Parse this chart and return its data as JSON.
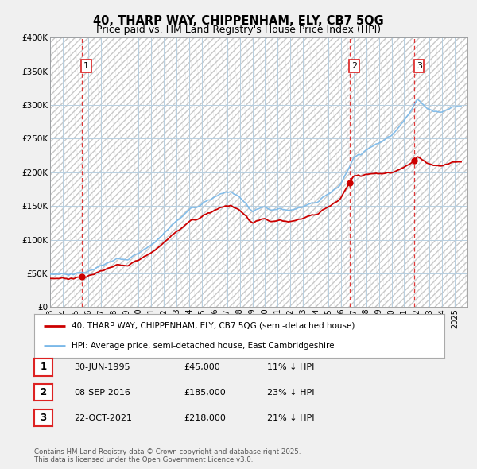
{
  "title": "40, THARP WAY, CHIPPENHAM, ELY, CB7 5QG",
  "subtitle": "Price paid vs. HM Land Registry's House Price Index (HPI)",
  "ylim": [
    0,
    400000
  ],
  "yticks": [
    0,
    50000,
    100000,
    150000,
    200000,
    250000,
    300000,
    350000,
    400000
  ],
  "ytick_labels": [
    "£0",
    "£50K",
    "£100K",
    "£150K",
    "£200K",
    "£250K",
    "£300K",
    "£350K",
    "£400K"
  ],
  "hpi_color": "#7ab8e8",
  "price_color": "#cc0000",
  "sale_dates": [
    1995.496,
    2016.686,
    2021.808
  ],
  "sale_prices": [
    45000,
    185000,
    218000
  ],
  "sale_labels": [
    "1",
    "2",
    "3"
  ],
  "sale_info": [
    {
      "label": "1",
      "date": "30-JUN-1995",
      "price": "£45,000",
      "pct": "11% ↓ HPI"
    },
    {
      "label": "2",
      "date": "08-SEP-2016",
      "price": "£185,000",
      "pct": "23% ↓ HPI"
    },
    {
      "label": "3",
      "date": "22-OCT-2021",
      "price": "£218,000",
      "pct": "21% ↓ HPI"
    }
  ],
  "legend_line1": "40, THARP WAY, CHIPPENHAM, ELY, CB7 5QG (semi-detached house)",
  "legend_line2": "HPI: Average price, semi-detached house, East Cambridgeshire",
  "footer": "Contains HM Land Registry data © Crown copyright and database right 2025.\nThis data is licensed under the Open Government Licence v3.0.",
  "bg_color": "#f0f0f0",
  "plot_bg_color": "#dce8f5",
  "hatch_color": "#c8c8c8",
  "grid_color": "#b8cfe0",
  "vline_color": "#dd2222",
  "title_fontsize": 10.5,
  "subtitle_fontsize": 9,
  "tick_fontsize": 7.5,
  "xstart": 1993,
  "xend": 2026
}
